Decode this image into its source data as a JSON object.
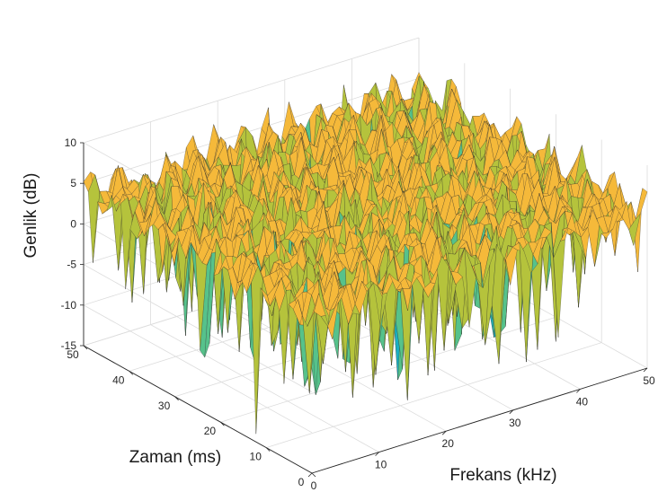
{
  "chart_data": {
    "type": "surface",
    "title": "",
    "xlabel": "Frekans (kHz)",
    "ylabel": "Zaman (ms)",
    "zlabel": "Genlik (dB)",
    "xlim": [
      0,
      50
    ],
    "ylim": [
      0,
      50
    ],
    "zlim": [
      -15,
      10
    ],
    "xticks": [
      "0",
      "10",
      "20",
      "30",
      "40",
      "50"
    ],
    "yticks": [
      "0",
      "10",
      "20",
      "30",
      "40",
      "50"
    ],
    "zticks": [
      "-15",
      "-10",
      "-5",
      "0",
      "5",
      "10"
    ],
    "grid": true,
    "colormap": [
      "#3e26a8",
      "#2d7ae6",
      "#1ab0c2",
      "#56c28b",
      "#b5c33c",
      "#f5b93a",
      "#f8e21f"
    ],
    "grid_resolution": [
      50,
      50
    ],
    "typical_level_db": 4,
    "deepest_notch": {
      "frekans_khz": 0,
      "zaman_ms": 12,
      "genlik_db": -14
    },
    "z_values": []
  }
}
